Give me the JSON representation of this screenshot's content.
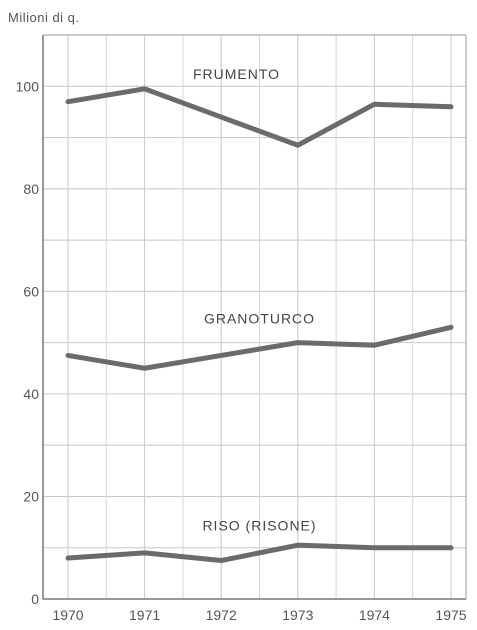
{
  "chart_data": {
    "type": "line",
    "ylabel": "Milioni di q.",
    "x": [
      "1970",
      "1971",
      "1972",
      "1973",
      "1974",
      "1975"
    ],
    "ylim": [
      0,
      110
    ],
    "yticks": [
      0,
      20,
      40,
      60,
      80,
      100
    ],
    "grid": true,
    "series": [
      {
        "name": "FRUMENTO",
        "values": [
          97,
          99.5,
          94,
          88.5,
          96.5,
          96
        ]
      },
      {
        "name": "GRANOTURCO",
        "values": [
          47.5,
          45,
          47.5,
          50,
          49.5,
          53
        ]
      },
      {
        "name": "RISO (RISONE)",
        "values": [
          8,
          9,
          7.5,
          10.5,
          10,
          10
        ]
      }
    ],
    "line_color": "#6b6b6b"
  }
}
